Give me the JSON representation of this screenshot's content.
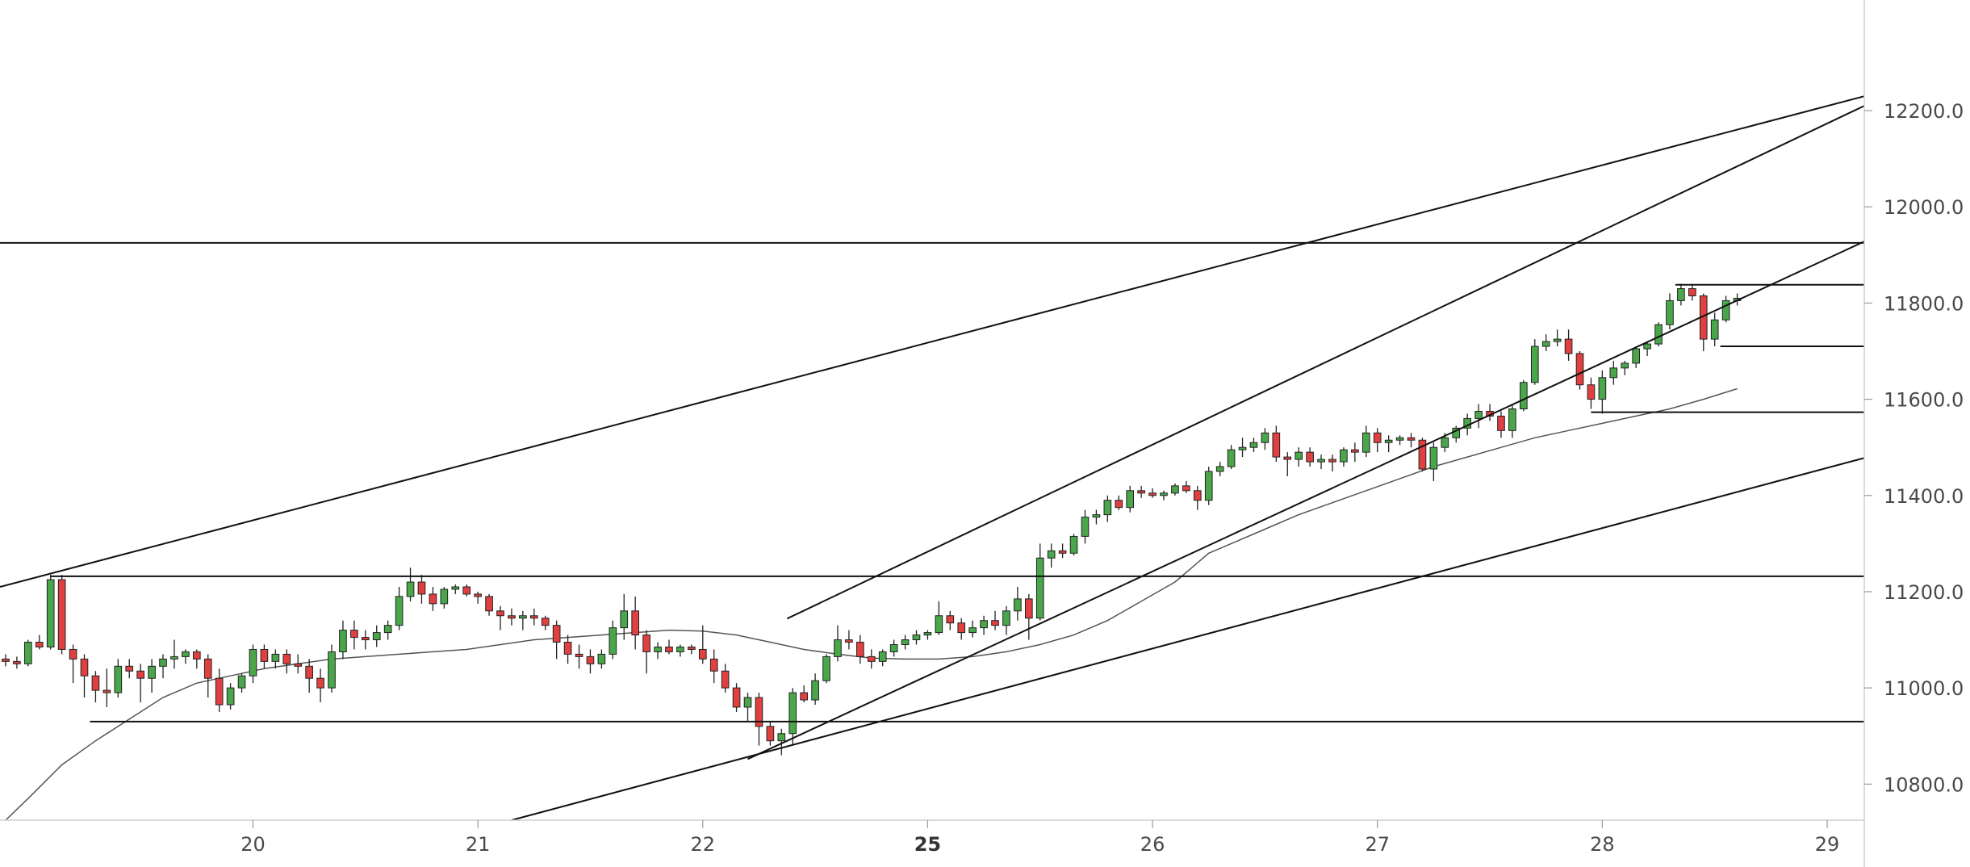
{
  "chart_data": {
    "type": "candlestick",
    "title": "",
    "xlabel": "",
    "ylabel": "",
    "ylim": [
      10725,
      12430
    ],
    "y_ticks": [
      "10800.0",
      "11000.0",
      "11200.0",
      "11400.0",
      "11600.0",
      "11800.0",
      "12000.0",
      "12200.0"
    ],
    "x_ticks": [
      {
        "label": "20",
        "bold": false,
        "bar": 20
      },
      {
        "label": "21",
        "bold": false,
        "bar": 40
      },
      {
        "label": "22",
        "bold": false,
        "bar": 60
      },
      {
        "label": "25",
        "bold": true,
        "bar": 80
      },
      {
        "label": "26",
        "bold": false,
        "bar": 100
      },
      {
        "label": "27",
        "bold": false,
        "bar": 120
      },
      {
        "label": "28",
        "bold": false,
        "bar": 140
      },
      {
        "label": "29",
        "bold": false,
        "bar": 160
      }
    ],
    "bar_index_range": [
      -2.5,
      163.3
    ],
    "colors": {
      "up": "#4aa64a",
      "down": "#e04040",
      "wick": "#222222",
      "line": "#111111",
      "ma": "#555555"
    },
    "candles": [
      [
        -2,
        11060,
        11070,
        11045,
        11055
      ],
      [
        -1,
        11055,
        11065,
        11040,
        11050
      ],
      [
        0,
        11050,
        11100,
        11045,
        11095
      ],
      [
        1,
        11095,
        11110,
        11080,
        11085
      ],
      [
        2,
        11085,
        11235,
        11080,
        11225
      ],
      [
        3,
        11225,
        11235,
        11070,
        11080
      ],
      [
        4,
        11080,
        11090,
        11010,
        11060
      ],
      [
        5,
        11060,
        11070,
        10980,
        11025
      ],
      [
        6,
        11025,
        11035,
        10970,
        10995
      ],
      [
        7,
        10995,
        11040,
        10960,
        10990
      ],
      [
        8,
        10990,
        11060,
        10980,
        11045
      ],
      [
        9,
        11045,
        11060,
        11020,
        11035
      ],
      [
        10,
        11035,
        11050,
        10970,
        11020
      ],
      [
        11,
        11020,
        11060,
        10990,
        11045
      ],
      [
        12,
        11045,
        11070,
        11020,
        11060
      ],
      [
        13,
        11060,
        11100,
        11040,
        11065
      ],
      [
        14,
        11065,
        11080,
        11050,
        11075
      ],
      [
        15,
        11075,
        11080,
        11040,
        11060
      ],
      [
        16,
        11060,
        11070,
        10980,
        11020
      ],
      [
        17,
        11020,
        11040,
        10950,
        10965
      ],
      [
        18,
        10965,
        11010,
        10955,
        11000
      ],
      [
        19,
        11000,
        11030,
        10990,
        11025
      ],
      [
        20,
        11025,
        11090,
        11010,
        11080
      ],
      [
        21,
        11080,
        11090,
        11040,
        11055
      ],
      [
        22,
        11055,
        11080,
        11040,
        11070
      ],
      [
        23,
        11070,
        11080,
        11030,
        11050
      ],
      [
        24,
        11050,
        11070,
        11030,
        11045
      ],
      [
        25,
        11045,
        11060,
        10990,
        11020
      ],
      [
        26,
        11020,
        11040,
        10970,
        11000
      ],
      [
        27,
        11000,
        11090,
        10990,
        11075
      ],
      [
        28,
        11075,
        11140,
        11060,
        11120
      ],
      [
        29,
        11120,
        11140,
        11080,
        11105
      ],
      [
        30,
        11105,
        11120,
        11080,
        11100
      ],
      [
        31,
        11100,
        11130,
        11085,
        11115
      ],
      [
        32,
        11115,
        11140,
        11100,
        11130
      ],
      [
        33,
        11130,
        11210,
        11120,
        11190
      ],
      [
        34,
        11190,
        11250,
        11180,
        11220
      ],
      [
        35,
        11220,
        11235,
        11175,
        11195
      ],
      [
        36,
        11195,
        11210,
        11160,
        11175
      ],
      [
        37,
        11175,
        11210,
        11165,
        11205
      ],
      [
        38,
        11205,
        11215,
        11195,
        11210
      ],
      [
        39,
        11210,
        11215,
        11190,
        11195
      ],
      [
        40,
        11195,
        11200,
        11175,
        11190
      ],
      [
        41,
        11190,
        11195,
        11150,
        11160
      ],
      [
        42,
        11160,
        11170,
        11120,
        11150
      ],
      [
        43,
        11150,
        11165,
        11130,
        11145
      ],
      [
        44,
        11145,
        11160,
        11120,
        11150
      ],
      [
        45,
        11150,
        11165,
        11130,
        11145
      ],
      [
        46,
        11145,
        11150,
        11120,
        11130
      ],
      [
        47,
        11130,
        11140,
        11060,
        11095
      ],
      [
        48,
        11095,
        11110,
        11050,
        11070
      ],
      [
        49,
        11070,
        11090,
        11040,
        11065
      ],
      [
        50,
        11065,
        11080,
        11030,
        11050
      ],
      [
        51,
        11050,
        11080,
        11040,
        11070
      ],
      [
        52,
        11070,
        11140,
        11060,
        11125
      ],
      [
        53,
        11125,
        11195,
        11100,
        11160
      ],
      [
        54,
        11160,
        11190,
        11080,
        11110
      ],
      [
        55,
        11110,
        11120,
        11030,
        11075
      ],
      [
        56,
        11075,
        11095,
        11060,
        11085
      ],
      [
        57,
        11085,
        11100,
        11070,
        11075
      ],
      [
        58,
        11075,
        11090,
        11065,
        11085
      ],
      [
        59,
        11085,
        11090,
        11070,
        11080
      ],
      [
        60,
        11080,
        11130,
        11050,
        11060
      ],
      [
        61,
        11060,
        11080,
        11010,
        11035
      ],
      [
        62,
        11035,
        11050,
        10990,
        11000
      ],
      [
        63,
        11000,
        11010,
        10950,
        10960
      ],
      [
        64,
        10960,
        10990,
        10930,
        10980
      ],
      [
        65,
        10980,
        10990,
        10880,
        10920
      ],
      [
        66,
        10920,
        10930,
        10880,
        10890
      ],
      [
        67,
        10890,
        10915,
        10860,
        10905
      ],
      [
        68,
        10905,
        11000,
        10880,
        10990
      ],
      [
        69,
        10990,
        11005,
        10970,
        10975
      ],
      [
        70,
        10975,
        11030,
        10965,
        11015
      ],
      [
        71,
        11015,
        11070,
        11010,
        11065
      ],
      [
        72,
        11065,
        11130,
        11055,
        11100
      ],
      [
        73,
        11100,
        11120,
        11080,
        11095
      ],
      [
        74,
        11095,
        11110,
        11050,
        11065
      ],
      [
        75,
        11065,
        11080,
        11040,
        11055
      ],
      [
        76,
        11055,
        11080,
        11045,
        11075
      ],
      [
        77,
        11075,
        11100,
        11065,
        11090
      ],
      [
        78,
        11090,
        11110,
        11080,
        11100
      ],
      [
        79,
        11100,
        11120,
        11090,
        11110
      ],
      [
        80,
        11110,
        11120,
        11100,
        11115
      ],
      [
        81,
        11115,
        11180,
        11110,
        11150
      ],
      [
        82,
        11150,
        11160,
        11120,
        11135
      ],
      [
        83,
        11135,
        11145,
        11100,
        11115
      ],
      [
        84,
        11115,
        11140,
        11105,
        11125
      ],
      [
        85,
        11125,
        11150,
        11110,
        11140
      ],
      [
        86,
        11140,
        11160,
        11120,
        11130
      ],
      [
        87,
        11130,
        11170,
        11110,
        11160
      ],
      [
        88,
        11160,
        11210,
        11140,
        11185
      ],
      [
        89,
        11185,
        11195,
        11100,
        11145
      ],
      [
        90,
        11145,
        11300,
        11140,
        11270
      ],
      [
        91,
        11270,
        11300,
        11250,
        11285
      ],
      [
        92,
        11285,
        11300,
        11270,
        11280
      ],
      [
        93,
        11280,
        11320,
        11275,
        11315
      ],
      [
        94,
        11315,
        11370,
        11300,
        11355
      ],
      [
        95,
        11355,
        11370,
        11340,
        11360
      ],
      [
        96,
        11360,
        11400,
        11345,
        11390
      ],
      [
        97,
        11390,
        11400,
        11370,
        11375
      ],
      [
        98,
        11375,
        11420,
        11365,
        11410
      ],
      [
        99,
        11410,
        11420,
        11395,
        11405
      ],
      [
        100,
        11405,
        11415,
        11395,
        11400
      ],
      [
        101,
        11400,
        11410,
        11390,
        11405
      ],
      [
        102,
        11405,
        11425,
        11400,
        11420
      ],
      [
        103,
        11420,
        11430,
        11405,
        11410
      ],
      [
        104,
        11410,
        11420,
        11370,
        11390
      ],
      [
        105,
        11390,
        11460,
        11380,
        11450
      ],
      [
        106,
        11450,
        11470,
        11440,
        11460
      ],
      [
        107,
        11460,
        11505,
        11455,
        11495
      ],
      [
        108,
        11495,
        11520,
        11480,
        11500
      ],
      [
        109,
        11500,
        11520,
        11490,
        11510
      ],
      [
        110,
        11510,
        11540,
        11495,
        11530
      ],
      [
        111,
        11530,
        11545,
        11470,
        11480
      ],
      [
        112,
        11480,
        11490,
        11440,
        11475
      ],
      [
        113,
        11475,
        11500,
        11460,
        11490
      ],
      [
        114,
        11490,
        11500,
        11460,
        11470
      ],
      [
        115,
        11470,
        11485,
        11455,
        11475
      ],
      [
        116,
        11475,
        11485,
        11450,
        11470
      ],
      [
        117,
        11470,
        11500,
        11460,
        11495
      ],
      [
        118,
        11495,
        11510,
        11470,
        11490
      ],
      [
        119,
        11490,
        11545,
        11480,
        11530
      ],
      [
        120,
        11530,
        11540,
        11490,
        11510
      ],
      [
        121,
        11510,
        11525,
        11490,
        11515
      ],
      [
        122,
        11515,
        11525,
        11505,
        11520
      ],
      [
        123,
        11520,
        11530,
        11500,
        11515
      ],
      [
        124,
        11515,
        11520,
        11450,
        11455
      ],
      [
        125,
        11455,
        11510,
        11430,
        11500
      ],
      [
        126,
        11500,
        11530,
        11490,
        11520
      ],
      [
        127,
        11520,
        11545,
        11510,
        11540
      ],
      [
        128,
        11540,
        11570,
        11525,
        11560
      ],
      [
        129,
        11560,
        11590,
        11540,
        11575
      ],
      [
        130,
        11575,
        11590,
        11555,
        11565
      ],
      [
        131,
        11565,
        11575,
        11520,
        11535
      ],
      [
        132,
        11535,
        11590,
        11520,
        11580
      ],
      [
        133,
        11580,
        11640,
        11575,
        11635
      ],
      [
        134,
        11635,
        11725,
        11630,
        11710
      ],
      [
        135,
        11710,
        11735,
        11700,
        11720
      ],
      [
        136,
        11720,
        11745,
        11710,
        11725
      ],
      [
        137,
        11725,
        11745,
        11680,
        11695
      ],
      [
        138,
        11695,
        11700,
        11620,
        11630
      ],
      [
        139,
        11630,
        11645,
        11580,
        11600
      ],
      [
        140,
        11600,
        11660,
        11570,
        11645
      ],
      [
        141,
        11645,
        11680,
        11630,
        11665
      ],
      [
        142,
        11665,
        11680,
        11650,
        11675
      ],
      [
        143,
        11675,
        11710,
        11665,
        11705
      ],
      [
        144,
        11705,
        11720,
        11690,
        11715
      ],
      [
        145,
        11715,
        11760,
        11710,
        11755
      ],
      [
        146,
        11755,
        11820,
        11745,
        11805
      ],
      [
        147,
        11805,
        11840,
        11795,
        11830
      ],
      [
        148,
        11830,
        11840,
        11805,
        11815
      ],
      [
        149,
        11815,
        11820,
        11700,
        11725
      ],
      [
        150,
        11725,
        11780,
        11710,
        11765
      ],
      [
        151,
        11765,
        11815,
        11760,
        11805
      ],
      [
        152,
        11805,
        11820,
        11795,
        11810
      ]
    ],
    "moving_average": [
      [
        -2,
        10725
      ],
      [
        0,
        10770
      ],
      [
        3,
        10840
      ],
      [
        6,
        10890
      ],
      [
        9,
        10935
      ],
      [
        12,
        10980
      ],
      [
        15,
        11010
      ],
      [
        18,
        11025
      ],
      [
        21,
        11040
      ],
      [
        24,
        11050
      ],
      [
        27,
        11060
      ],
      [
        30,
        11065
      ],
      [
        33,
        11070
      ],
      [
        36,
        11075
      ],
      [
        39,
        11080
      ],
      [
        42,
        11090
      ],
      [
        45,
        11100
      ],
      [
        48,
        11105
      ],
      [
        51,
        11110
      ],
      [
        54,
        11115
      ],
      [
        57,
        11120
      ],
      [
        60,
        11118
      ],
      [
        63,
        11110
      ],
      [
        66,
        11095
      ],
      [
        69,
        11080
      ],
      [
        72,
        11070
      ],
      [
        75,
        11062
      ],
      [
        78,
        11060
      ],
      [
        81,
        11060
      ],
      [
        84,
        11065
      ],
      [
        87,
        11075
      ],
      [
        90,
        11090
      ],
      [
        93,
        11110
      ],
      [
        96,
        11140
      ],
      [
        99,
        11180
      ],
      [
        102,
        11220
      ],
      [
        104,
        11260
      ],
      [
        105,
        11280
      ],
      [
        107,
        11300
      ],
      [
        110,
        11330
      ],
      [
        113,
        11360
      ],
      [
        116,
        11385
      ],
      [
        119,
        11410
      ],
      [
        122,
        11435
      ],
      [
        125,
        11460
      ],
      [
        128,
        11480
      ],
      [
        131,
        11500
      ],
      [
        134,
        11520
      ],
      [
        137,
        11535
      ],
      [
        140,
        11550
      ],
      [
        143,
        11565
      ],
      [
        146,
        11580
      ],
      [
        149,
        11600
      ],
      [
        152,
        11622
      ]
    ],
    "horizontal_levels": [
      {
        "price": 11925,
        "from": -2.5,
        "to": 163.3
      },
      {
        "price": 11232,
        "from": 2,
        "to": 163.3
      },
      {
        "price": 10930,
        "from": 5.5,
        "to": 163.3
      },
      {
        "price": 11838,
        "from": 146.5,
        "to": 163.3
      },
      {
        "price": 11710,
        "from": 150.5,
        "to": 163.3
      },
      {
        "price": 11573,
        "from": 139,
        "to": 163.3
      }
    ],
    "trend_lines": [
      {
        "from": [
          -2.5,
          11210
        ],
        "to": [
          163.3,
          12230
        ]
      },
      {
        "from": [
          64,
          10852
        ],
        "to": [
          163.3,
          11928
        ]
      },
      {
        "from": [
          43,
          10725
        ],
        "to": [
          163.3,
          11478
        ]
      },
      {
        "from": [
          67.5,
          11144
        ],
        "to": [
          163.3,
          12210
        ]
      }
    ]
  }
}
